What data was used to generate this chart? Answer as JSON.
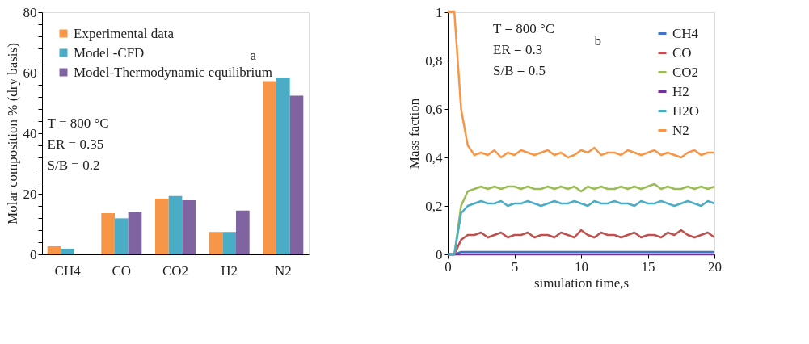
{
  "chart_data": [
    {
      "type": "bar",
      "ylabel": "Molar composition % (dry basis)",
      "categories": [
        "CH4",
        "CO",
        "CO2",
        "H2",
        "N2"
      ],
      "ylim": [
        0,
        80
      ],
      "yticks": [
        0,
        {
          "value": 4,
          "label": null
        },
        {
          "value": 8,
          "label": null
        },
        {
          "value": 12,
          "label": null
        },
        {
          "value": 16,
          "label": null
        },
        20,
        {
          "value": 24,
          "label": null
        },
        {
          "value": 28,
          "label": null
        },
        {
          "value": 32,
          "label": null
        },
        {
          "value": 36,
          "label": null
        },
        40,
        {
          "value": 44,
          "label": null
        },
        {
          "value": 48,
          "label": null
        },
        {
          "value": 52,
          "label": null
        },
        {
          "value": 56,
          "label": null
        },
        60,
        {
          "value": 64,
          "label": null
        },
        {
          "value": 68,
          "label": null
        },
        {
          "value": 72,
          "label": null
        },
        {
          "value": 76,
          "label": null
        },
        80
      ],
      "grid": false,
      "legend": "top left",
      "series": [
        {
          "name": "Experimental data",
          "color": "#f79646",
          "values": [
            2.7,
            13.6,
            18.4,
            7.4,
            57.2
          ]
        },
        {
          "name": "Model -CFD",
          "color": "#4bacc6",
          "values": [
            1.9,
            11.9,
            19.3,
            7.4,
            58.4
          ]
        },
        {
          "name": "Model-Thermodynamic equilibrium",
          "color": "#8064a2",
          "values": [
            null,
            14.0,
            17.9,
            14.5,
            52.4
          ]
        }
      ],
      "annotations": [
        "a",
        "T = 800 °C",
        "ER = 0.35",
        "S/B = 0.2"
      ]
    },
    {
      "type": "line",
      "xlabel": "simulation time,s",
      "ylabel": "Mass faction",
      "xlim": [
        0,
        20
      ],
      "xticks": [
        0,
        5,
        10,
        15,
        20
      ],
      "ylim": [
        0,
        1
      ],
      "yticks": [
        0,
        {
          "value": 0.2,
          "label": "0,2"
        },
        {
          "value": 0.4,
          "label": "0,4"
        },
        {
          "value": 0.6,
          "label": "0,6"
        },
        {
          "value": 0.8,
          "label": "0,8"
        },
        1
      ],
      "grid": false,
      "legend": "top right",
      "line_style": "solid",
      "marker": "none",
      "series": [
        {
          "name": "CH4",
          "color": "#4472c4",
          "x": [
            0,
            0.5,
            1,
            20
          ],
          "values": [
            0,
            0,
            0.01,
            0.01
          ]
        },
        {
          "name": "CO",
          "color": "#c0504d",
          "x": [
            0,
            0.5,
            1,
            1.5,
            2,
            2.5,
            3,
            3.5,
            4,
            4.5,
            5,
            5.5,
            6,
            6.5,
            7,
            7.5,
            8,
            8.5,
            9,
            9.5,
            10,
            10.5,
            11,
            11.5,
            12,
            12.5,
            13,
            13.5,
            14,
            14.5,
            15,
            15.5,
            16,
            16.5,
            17,
            17.5,
            18,
            18.5,
            19,
            19.5,
            20
          ],
          "values": [
            0,
            0,
            0.06,
            0.08,
            0.08,
            0.09,
            0.07,
            0.08,
            0.09,
            0.07,
            0.08,
            0.08,
            0.09,
            0.07,
            0.08,
            0.08,
            0.07,
            0.09,
            0.08,
            0.07,
            0.1,
            0.08,
            0.07,
            0.09,
            0.08,
            0.08,
            0.07,
            0.08,
            0.09,
            0.07,
            0.08,
            0.08,
            0.07,
            0.09,
            0.08,
            0.1,
            0.08,
            0.07,
            0.08,
            0.09,
            0.07
          ]
        },
        {
          "name": "CO2",
          "color": "#9bbb59",
          "x": [
            0,
            0.5,
            1,
            1.5,
            2,
            2.5,
            3,
            3.5,
            4,
            4.5,
            5,
            5.5,
            6,
            6.5,
            7,
            7.5,
            8,
            8.5,
            9,
            9.5,
            10,
            10.5,
            11,
            11.5,
            12,
            12.5,
            13,
            13.5,
            14,
            14.5,
            15,
            15.5,
            16,
            16.5,
            17,
            17.5,
            18,
            18.5,
            19,
            19.5,
            20
          ],
          "values": [
            0,
            0,
            0.2,
            0.26,
            0.27,
            0.28,
            0.27,
            0.28,
            0.27,
            0.28,
            0.28,
            0.27,
            0.28,
            0.27,
            0.27,
            0.28,
            0.27,
            0.28,
            0.27,
            0.28,
            0.26,
            0.28,
            0.27,
            0.28,
            0.27,
            0.27,
            0.28,
            0.27,
            0.28,
            0.27,
            0.28,
            0.29,
            0.27,
            0.28,
            0.27,
            0.27,
            0.28,
            0.27,
            0.28,
            0.27,
            0.28
          ]
        },
        {
          "name": "H2",
          "color": "#7030a0",
          "x": [
            0,
            20
          ],
          "values": [
            0,
            0
          ]
        },
        {
          "name": "H2O",
          "color": "#4bacc6",
          "x": [
            0,
            0.5,
            1,
            1.5,
            2,
            2.5,
            3,
            3.5,
            4,
            4.5,
            5,
            5.5,
            6,
            6.5,
            7,
            7.5,
            8,
            8.5,
            9,
            9.5,
            10,
            10.5,
            11,
            11.5,
            12,
            12.5,
            13,
            13.5,
            14,
            14.5,
            15,
            15.5,
            16,
            16.5,
            17,
            17.5,
            18,
            18.5,
            19,
            19.5,
            20
          ],
          "values": [
            0,
            0,
            0.17,
            0.2,
            0.21,
            0.22,
            0.21,
            0.21,
            0.22,
            0.2,
            0.21,
            0.21,
            0.22,
            0.21,
            0.2,
            0.21,
            0.22,
            0.21,
            0.21,
            0.22,
            0.21,
            0.2,
            0.22,
            0.21,
            0.21,
            0.22,
            0.21,
            0.21,
            0.2,
            0.22,
            0.21,
            0.21,
            0.22,
            0.21,
            0.2,
            0.21,
            0.22,
            0.21,
            0.2,
            0.22,
            0.21
          ]
        },
        {
          "name": "N2",
          "color": "#f79646",
          "x": [
            0,
            0.5,
            1,
            1.5,
            2,
            2.5,
            3,
            3.5,
            4,
            4.5,
            5,
            5.5,
            6,
            6.5,
            7,
            7.5,
            8,
            8.5,
            9,
            9.5,
            10,
            10.5,
            11,
            11.5,
            12,
            12.5,
            13,
            13.5,
            14,
            14.5,
            15,
            15.5,
            16,
            16.5,
            17,
            17.5,
            18,
            18.5,
            19,
            19.5,
            20
          ],
          "values": [
            1,
            1,
            0.6,
            0.45,
            0.41,
            0.42,
            0.41,
            0.43,
            0.4,
            0.42,
            0.41,
            0.43,
            0.42,
            0.41,
            0.42,
            0.43,
            0.41,
            0.42,
            0.4,
            0.41,
            0.43,
            0.42,
            0.44,
            0.41,
            0.42,
            0.42,
            0.41,
            0.43,
            0.42,
            0.41,
            0.42,
            0.43,
            0.41,
            0.42,
            0.41,
            0.4,
            0.42,
            0.43,
            0.41,
            0.42,
            0.42
          ]
        }
      ],
      "annotations": [
        "b",
        "T = 800 °C",
        "ER = 0.3",
        "S/B = 0.5"
      ]
    }
  ]
}
